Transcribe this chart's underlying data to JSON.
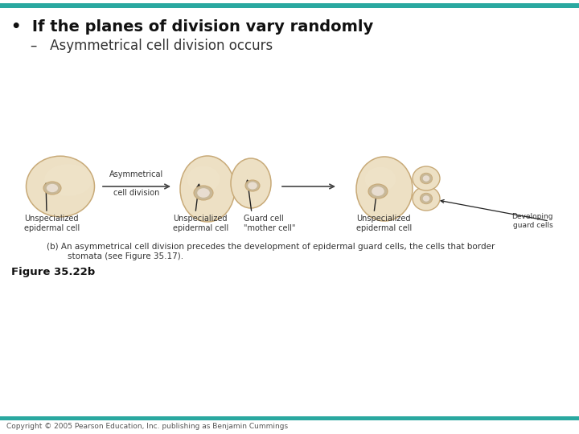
{
  "bg_color": "#ffffff",
  "teal_color": "#2aA8A0",
  "title_text": "•  If the planes of division vary randomly",
  "subtitle_text": "–   Asymmetrical cell division occurs",
  "title_fontsize": 14,
  "subtitle_fontsize": 12,
  "cell_color": "#ede0c4",
  "cell_edge_color": "#c8aa78",
  "cell_shadow_color": "#d4c09a",
  "nucleus_color": "#c8b898",
  "nucleus_inner_color": "#e8ddd0",
  "arrow_color": "#444444",
  "label_fontsize": 7,
  "caption_fontsize": 7.5,
  "caption_text": "(b) An asymmetrical cell division precedes the development of epidermal guard cells, the cells that border\n        stomata (see Figure 35.17).",
  "figure_label": "Figure 35.22b",
  "copyright_text": "Copyright © 2005 Pearson Education, Inc. publishing as Benjamin Cummings",
  "asymm_label": "Asymmetrical",
  "cell_div_label": "cell division",
  "unspec1_label": "Unspecialized\nepidermal cell",
  "unspec2_label": "Unspecialized\nepidermal cell",
  "guard_cell_label": "Guard cell\n\"mother cell\"",
  "unspec3_label": "Unspecialized\nepidermal cell",
  "developing_label": "Developing\nguard cells",
  "teal_bar_height": 5
}
